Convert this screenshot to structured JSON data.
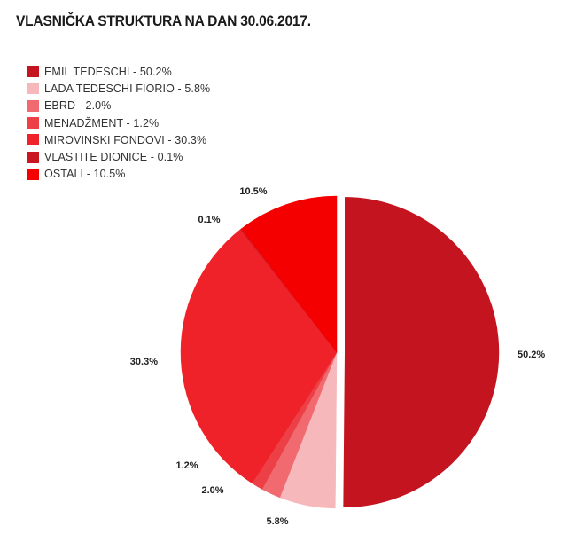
{
  "chart_data": {
    "type": "pie",
    "title": "VLASNIČKA STRUKTURA NA DAN 30.06.2017.",
    "slices": [
      {
        "name": "EMIL TEDESCHI",
        "value": 50.2,
        "legend": "EMIL TEDESCHI - 50.2%",
        "label": "50.2%",
        "color": "#c4141f"
      },
      {
        "name": "LADA TEDESCHI FIORIO",
        "value": 5.8,
        "legend": "LADA TEDESCHI FIORIO - 5.8%",
        "label": "5.8%",
        "color": "#f7b8bc"
      },
      {
        "name": "EBRD",
        "value": 2.0,
        "legend": "EBRD - 2.0%",
        "label": "2.0%",
        "color": "#f06a70"
      },
      {
        "name": "MENADŽMENT",
        "value": 1.2,
        "legend": "MENADŽMENT - 1.2%",
        "label": "1.2%",
        "color": "#ec3f46"
      },
      {
        "name": "MIROVINSKI FONDOVI",
        "value": 30.3,
        "legend": "MIROVINSKI FONDOVI - 30.3%",
        "label": "30.3%",
        "color": "#ee2228"
      },
      {
        "name": "VLASTITE DIONICE",
        "value": 0.1,
        "legend": "VLASTITE DIONICE - 0.1%",
        "label": "0.1%",
        "color": "#c91620"
      },
      {
        "name": "OSTALI",
        "value": 10.5,
        "legend": "OSTALI - 10.5%",
        "label": "10.5%",
        "color": "#f50000"
      }
    ],
    "legend_position": "top-left",
    "exploded_slice": "EMIL TEDESCHI"
  }
}
